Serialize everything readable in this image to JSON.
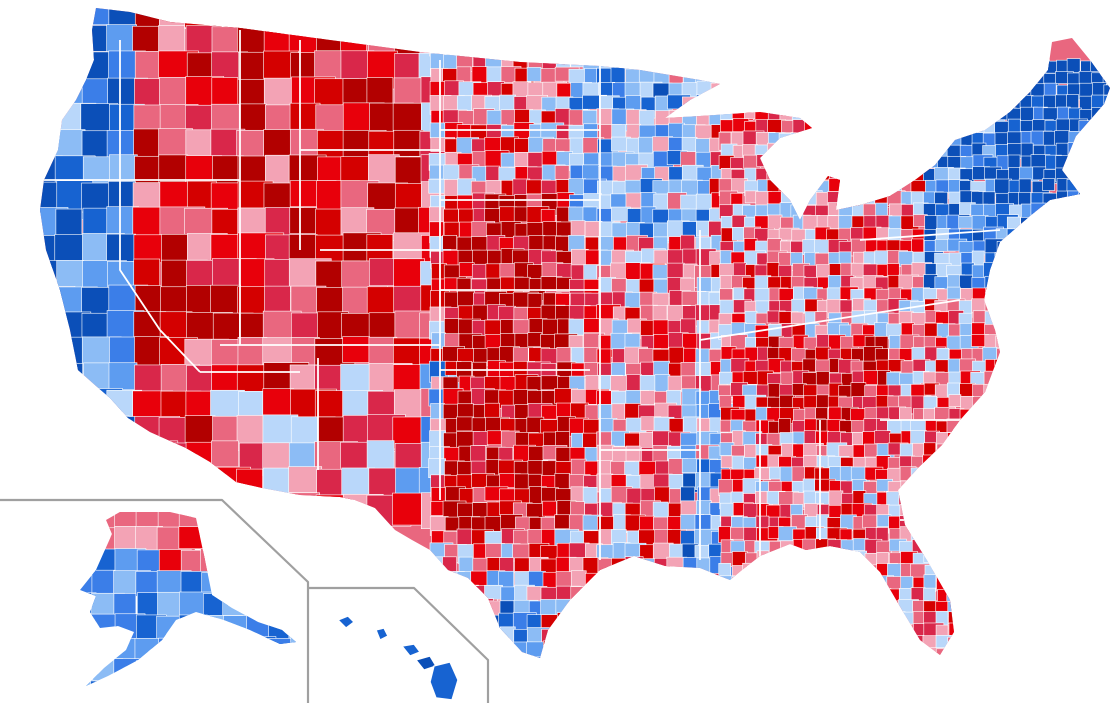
{
  "map": {
    "kind": "county-level choropleth of the United States",
    "legend": null,
    "regions": [
      "contiguous-us",
      "alaska-inset",
      "hawaii-inset"
    ]
  },
  "palette": {
    "red_darkest": "#b20000",
    "red_dark": "#d40000",
    "red": "#e8000b",
    "red_medium": "#d9274a",
    "red_light": "#e9677f",
    "red_lightest": "#f3a3b5",
    "blue_lightest": "#b9d7fa",
    "blue_light": "#8cbcf5",
    "blue": "#5d9cf0",
    "blue_medium": "#3b7ee8",
    "blue_dark": "#1763d1",
    "blue_darkest": "#0b4fb8",
    "background": "#ffffff",
    "border": "#ffffff",
    "inset_frame": "#a0a0a0"
  }
}
